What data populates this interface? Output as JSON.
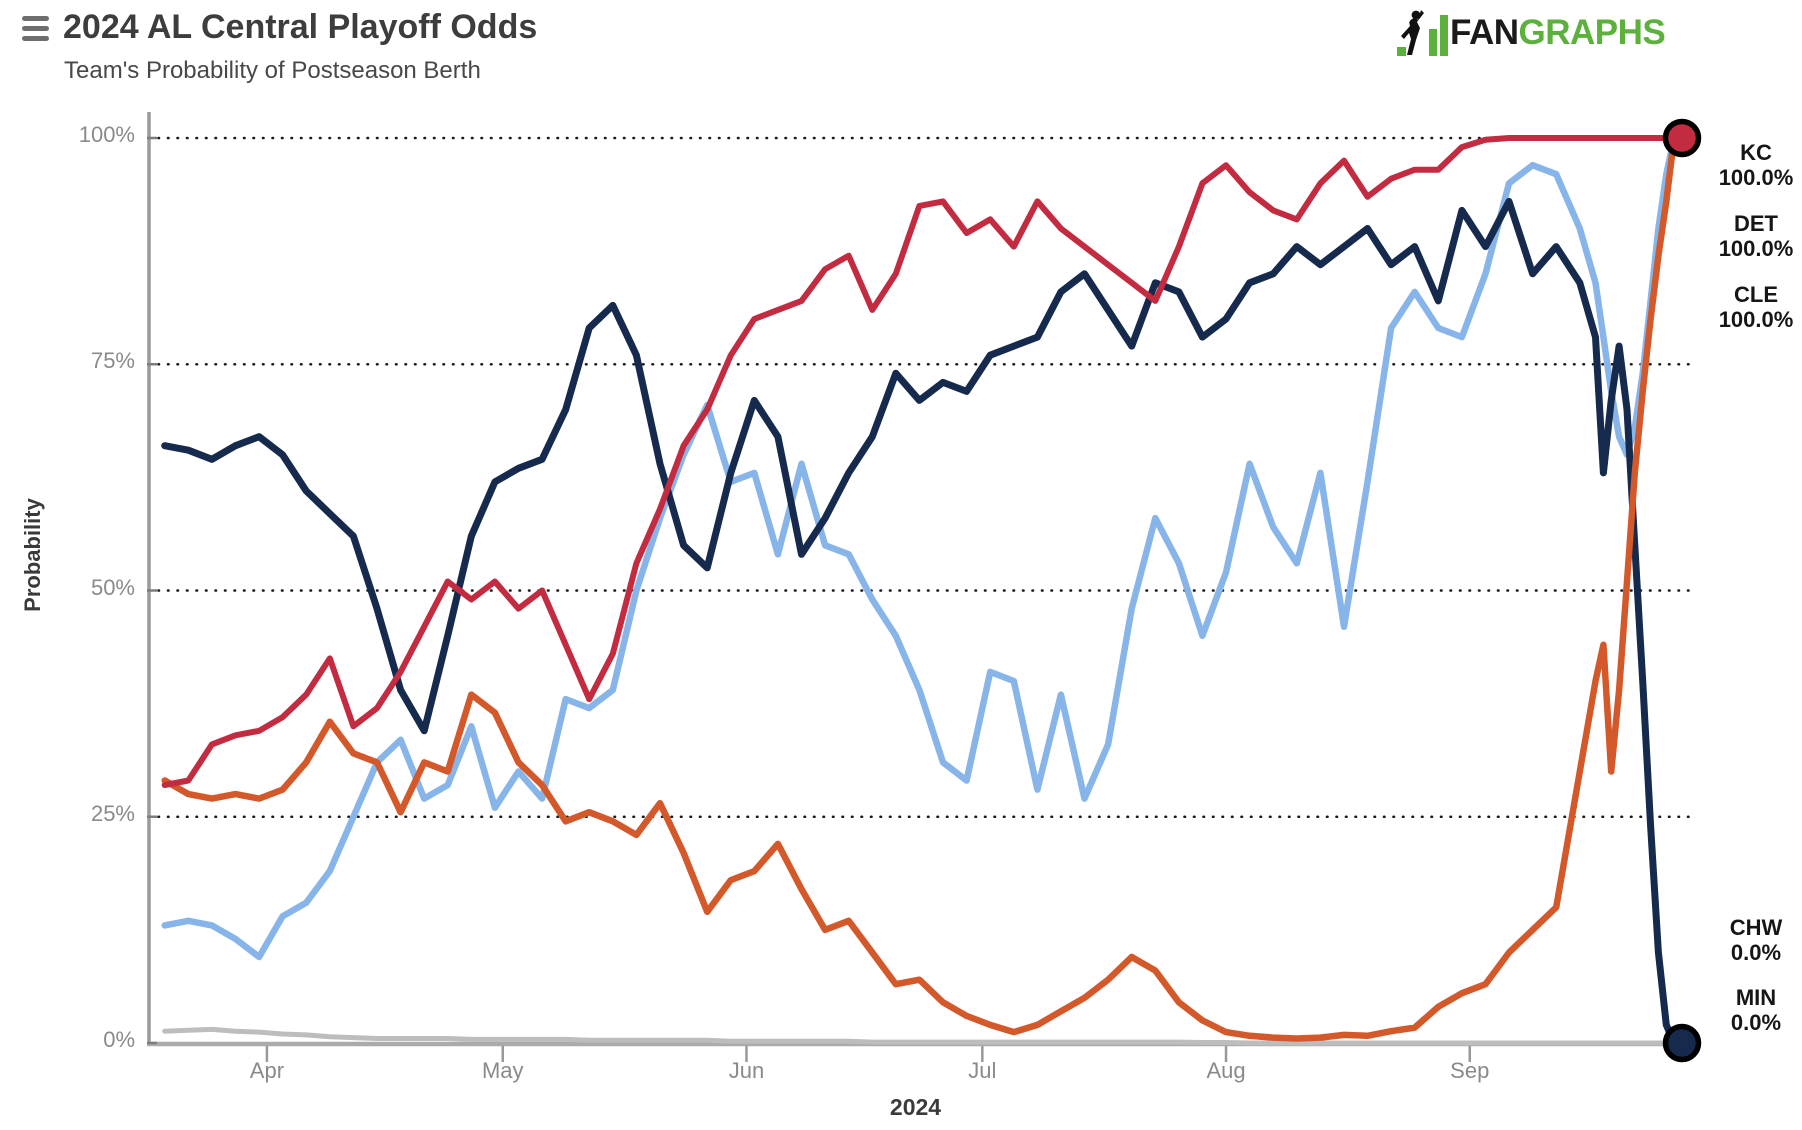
{
  "header": {
    "title": "2024 AL Central Playoff Odds",
    "subtitle": "Team's Probability of Postseason Berth",
    "logo": {
      "fan": "FAN",
      "graphs": "GRAPHS",
      "green": "#5cb03c",
      "black": "#1b1b1b"
    }
  },
  "chart_data": {
    "type": "line",
    "title": "2024 AL Central Playoff Odds",
    "subtitle": "Team's Probability of Postseason Berth",
    "xlabel": "2024",
    "ylabel": "Probability",
    "ylim": [
      0,
      100
    ],
    "grid": "horizontal-dotted",
    "x_domain": [
      "2024-03-17",
      "2024-09-28"
    ],
    "yticks": [
      {
        "label": "0%",
        "value": 0
      },
      {
        "label": "25%",
        "value": 25
      },
      {
        "label": "50%",
        "value": 50
      },
      {
        "label": "75%",
        "value": 75
      },
      {
        "label": "100%",
        "value": 100
      }
    ],
    "xticks": [
      {
        "label": "Apr",
        "date": "2024-04-01"
      },
      {
        "label": "May",
        "date": "2024-05-01"
      },
      {
        "label": "Jun",
        "date": "2024-06-01"
      },
      {
        "label": "Jul",
        "date": "2024-07-01"
      },
      {
        "label": "Aug",
        "date": "2024-08-01"
      },
      {
        "label": "Sep",
        "date": "2024-09-01"
      }
    ],
    "x": [
      "2024-03-19",
      "2024-03-22",
      "2024-03-25",
      "2024-03-28",
      "2024-03-31",
      "2024-04-03",
      "2024-04-06",
      "2024-04-09",
      "2024-04-12",
      "2024-04-15",
      "2024-04-18",
      "2024-04-21",
      "2024-04-24",
      "2024-04-27",
      "2024-04-30",
      "2024-05-03",
      "2024-05-06",
      "2024-05-09",
      "2024-05-12",
      "2024-05-15",
      "2024-05-18",
      "2024-05-21",
      "2024-05-24",
      "2024-05-27",
      "2024-05-30",
      "2024-06-02",
      "2024-06-05",
      "2024-06-08",
      "2024-06-11",
      "2024-06-14",
      "2024-06-17",
      "2024-06-20",
      "2024-06-23",
      "2024-06-26",
      "2024-06-29",
      "2024-07-02",
      "2024-07-05",
      "2024-07-08",
      "2024-07-11",
      "2024-07-14",
      "2024-07-17",
      "2024-07-20",
      "2024-07-23",
      "2024-07-26",
      "2024-07-29",
      "2024-08-01",
      "2024-08-04",
      "2024-08-07",
      "2024-08-10",
      "2024-08-13",
      "2024-08-16",
      "2024-08-19",
      "2024-08-22",
      "2024-08-25",
      "2024-08-28",
      "2024-08-31",
      "2024-09-03",
      "2024-09-06",
      "2024-09-09",
      "2024-09-12",
      "2024-09-15",
      "2024-09-17",
      "2024-09-18",
      "2024-09-19",
      "2024-09-20",
      "2024-09-21",
      "2024-09-22",
      "2024-09-23",
      "2024-09-24",
      "2024-09-25",
      "2024-09-26",
      "2024-09-27",
      "2024-09-28"
    ],
    "series": [
      {
        "team": "CHW",
        "color": "#bdbdbd",
        "width": 5,
        "dot": false,
        "values": [
          1.3,
          1.4,
          1.5,
          1.3,
          1.2,
          1.0,
          0.9,
          0.7,
          0.6,
          0.5,
          0.5,
          0.5,
          0.5,
          0.4,
          0.4,
          0.4,
          0.4,
          0.4,
          0.3,
          0.3,
          0.3,
          0.3,
          0.3,
          0.3,
          0.2,
          0.2,
          0.2,
          0.2,
          0.2,
          0.2,
          0.1,
          0.1,
          0.1,
          0.1,
          0.1,
          0.1,
          0.1,
          0.1,
          0.1,
          0.1,
          0.1,
          0.1,
          0.1,
          0.1,
          0.05,
          0.05,
          0,
          0,
          0,
          0,
          0,
          0,
          0,
          0,
          0,
          0,
          0,
          0,
          0,
          0,
          0,
          0,
          0,
          0,
          0,
          0,
          0,
          0,
          0,
          0,
          0,
          0,
          0
        ]
      },
      {
        "team": "KC",
        "color": "#87b5ea",
        "width": 6.5,
        "dot": false,
        "values": [
          13,
          13.5,
          13,
          11.5,
          9.5,
          14,
          15.5,
          19,
          25,
          31,
          33.5,
          27,
          28.5,
          35,
          26,
          30,
          27,
          38,
          37,
          39,
          50,
          58,
          65,
          70.5,
          62,
          63,
          54,
          64,
          55,
          54,
          49,
          45,
          39,
          31,
          29,
          41,
          40,
          28,
          38.5,
          27,
          33,
          48,
          58,
          53,
          45,
          52,
          64,
          57,
          53,
          63,
          46,
          62,
          79,
          83,
          79,
          78,
          85,
          95,
          97,
          96,
          90,
          84,
          78,
          72,
          67,
          65,
          68,
          74,
          82,
          90,
          96,
          100,
          100
        ]
      },
      {
        "team": "MIN",
        "color": "#152a4d",
        "width": 7,
        "dot": true,
        "values": [
          66,
          65.5,
          64.5,
          66,
          67,
          65,
          61,
          58.5,
          56,
          48,
          39,
          34.5,
          45,
          56,
          62,
          63.5,
          64.5,
          70,
          79,
          81.5,
          76,
          64,
          55,
          52.5,
          63,
          71,
          67,
          54,
          58,
          63,
          67,
          74,
          71,
          73,
          72,
          76,
          77,
          78,
          83,
          85,
          81,
          77,
          84,
          83,
          78,
          80,
          84,
          85,
          88,
          86,
          88,
          90,
          86,
          88,
          82,
          92,
          88,
          93,
          85,
          88,
          84,
          78,
          63,
          71,
          77,
          70,
          55,
          40,
          24,
          10,
          2,
          0,
          0
        ]
      },
      {
        "team": "DET",
        "color": "#d4592a",
        "width": 6.5,
        "dot": false,
        "values": [
          29,
          27.5,
          27,
          27.5,
          27,
          28,
          31,
          35.5,
          32,
          31,
          25.5,
          31,
          30,
          38.5,
          36.5,
          31,
          28.5,
          24.5,
          25.5,
          24.5,
          23,
          26.5,
          21,
          14.5,
          18,
          19,
          22,
          17,
          12.5,
          13.5,
          10,
          6.5,
          7,
          4.5,
          3,
          2,
          1.2,
          2,
          3.5,
          5,
          7,
          9.5,
          8,
          4.5,
          2.5,
          1.2,
          0.8,
          0.6,
          0.5,
          0.6,
          0.9,
          0.8,
          1.3,
          1.7,
          4,
          5.5,
          6.5,
          10,
          12.5,
          15,
          30,
          40,
          44,
          30,
          39,
          51,
          63,
          72,
          80,
          87,
          93,
          100,
          100
        ]
      },
      {
        "team": "CLE",
        "color": "#c32b40",
        "width": 6,
        "dot": true,
        "values": [
          28.5,
          29,
          33,
          34,
          34.5,
          36,
          38.5,
          42.5,
          35,
          37,
          41,
          46,
          51,
          49,
          51,
          48,
          50,
          44,
          38,
          43,
          53,
          59,
          66,
          70,
          76,
          80,
          81,
          82,
          85.5,
          87,
          81,
          85,
          92.5,
          93,
          89.5,
          91,
          88,
          93,
          90,
          88,
          86,
          84,
          82,
          88,
          95,
          97,
          94,
          92,
          91,
          95,
          97.5,
          93.5,
          95.5,
          96.5,
          96.5,
          99,
          99.8,
          100,
          100,
          100,
          100,
          100,
          100,
          100,
          100,
          100,
          100,
          100,
          100,
          100,
          100,
          100,
          100
        ]
      }
    ],
    "end_labels": {
      "top": [
        {
          "team": "KC",
          "value": "100.0%"
        },
        {
          "team": "DET",
          "value": "100.0%"
        },
        {
          "team": "CLE",
          "value": "100.0%"
        }
      ],
      "bottom": [
        {
          "team": "CHW",
          "value": "0.0%"
        },
        {
          "team": "MIN",
          "value": "0.0%"
        }
      ]
    },
    "endpoint_dots": [
      {
        "team": "CLE",
        "fill": "#c32b40",
        "stroke": "#000000"
      },
      {
        "team": "MIN",
        "fill": "#152a4d",
        "stroke": "#000000"
      }
    ],
    "axis_color": "#9a9a9a",
    "gridline_color": "#1a1a1a",
    "tick_text_color": "#8a8a8a"
  }
}
